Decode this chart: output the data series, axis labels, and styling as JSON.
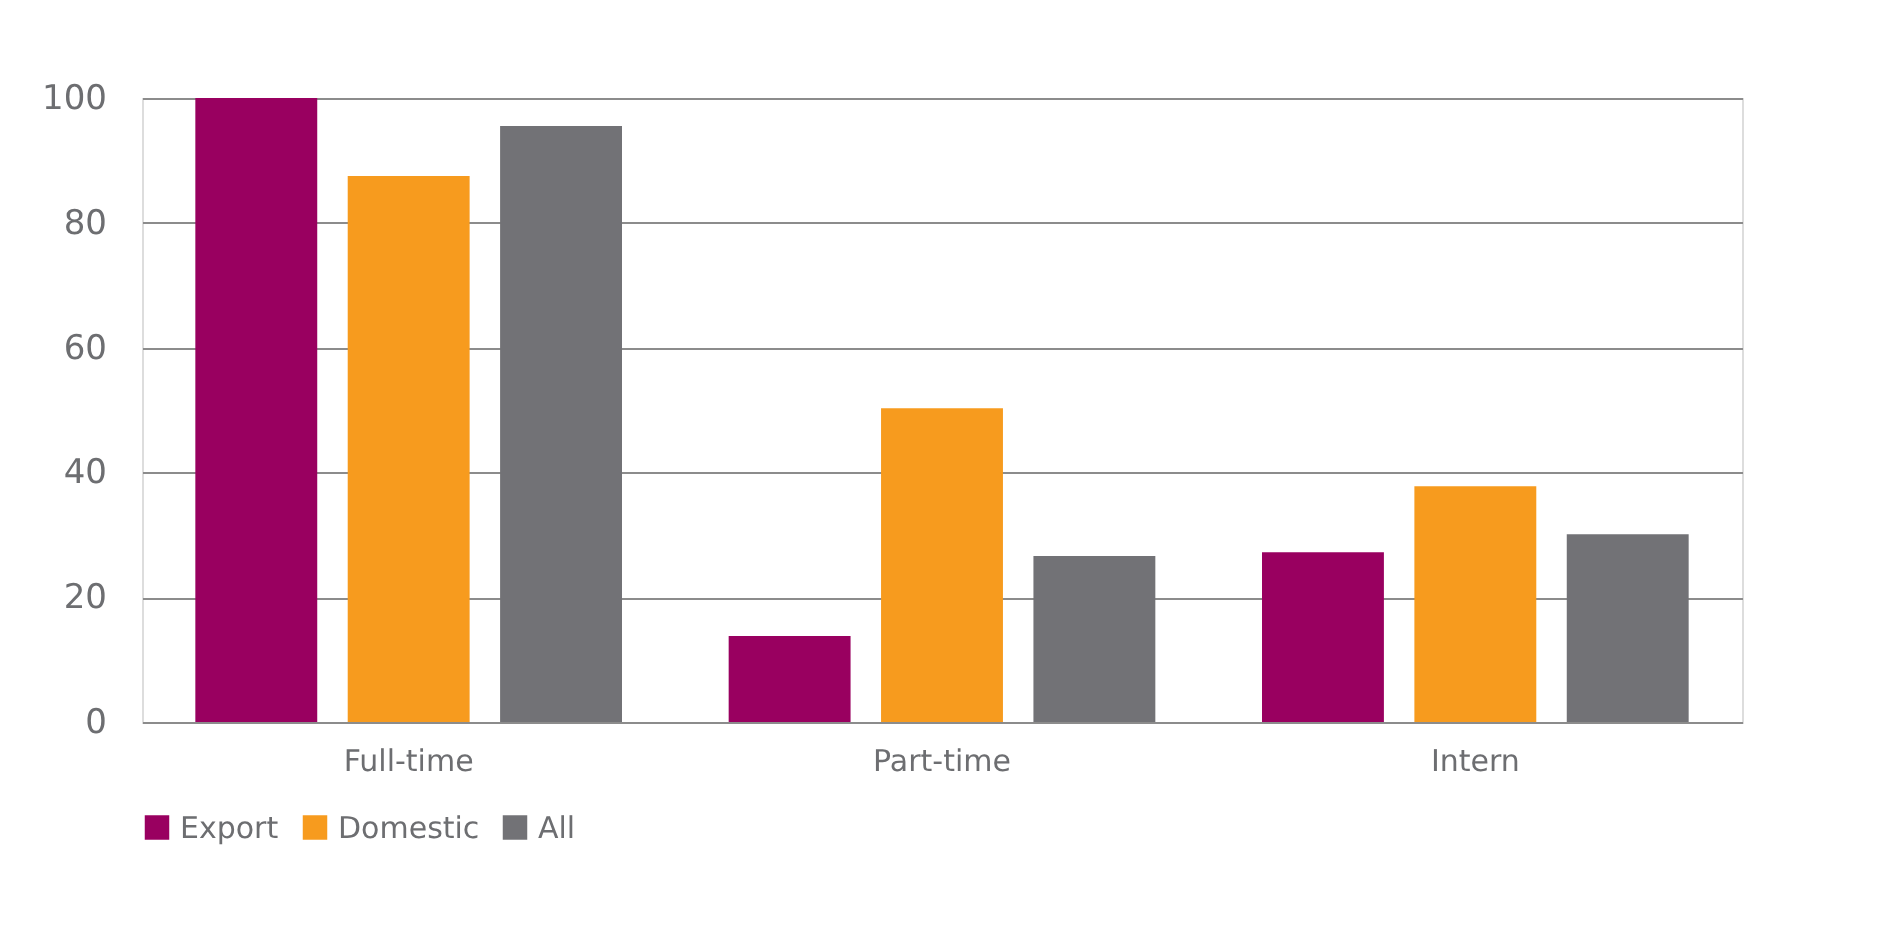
{
  "chart_data": {
    "type": "bar",
    "categories": [
      "Full-time",
      "Part-time",
      "Intern"
    ],
    "series": [
      {
        "name": "Export",
        "color": "#990060",
        "values": [
          100,
          13.8,
          27.2
        ]
      },
      {
        "name": "Domestic",
        "color": "#f79b1e",
        "values": [
          87.5,
          50.3,
          37.8
        ]
      },
      {
        "name": "All",
        "color": "#727276",
        "values": [
          95.5,
          26.6,
          30.1
        ]
      }
    ],
    "ylim": [
      0,
      100
    ],
    "yticks": [
      0,
      20,
      40,
      60,
      80,
      100
    ],
    "grid": "y",
    "legend": "bottom"
  }
}
